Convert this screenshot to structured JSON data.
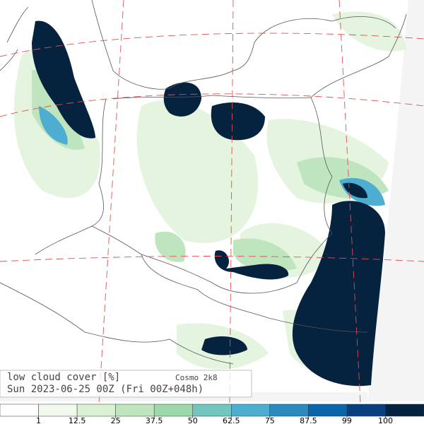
{
  "map": {
    "title": "low cloud cover  [%]",
    "model": "Cosmo 2k8",
    "time": "Sun 2023-06-25 00Z (Fri 00Z+048h)",
    "colorbar": {
      "colors": [
        "#ffffff",
        "#f1f9ec",
        "#d9f0d3",
        "#bfe5bf",
        "#9dd8aa",
        "#73c5bf",
        "#4daed2",
        "#2b8bbe",
        "#0a66a8",
        "#08407f",
        "#05223f"
      ],
      "ticks": [
        1,
        12.5,
        25,
        37.5,
        50,
        62.5,
        75,
        87.5,
        99,
        100
      ]
    }
  }
}
